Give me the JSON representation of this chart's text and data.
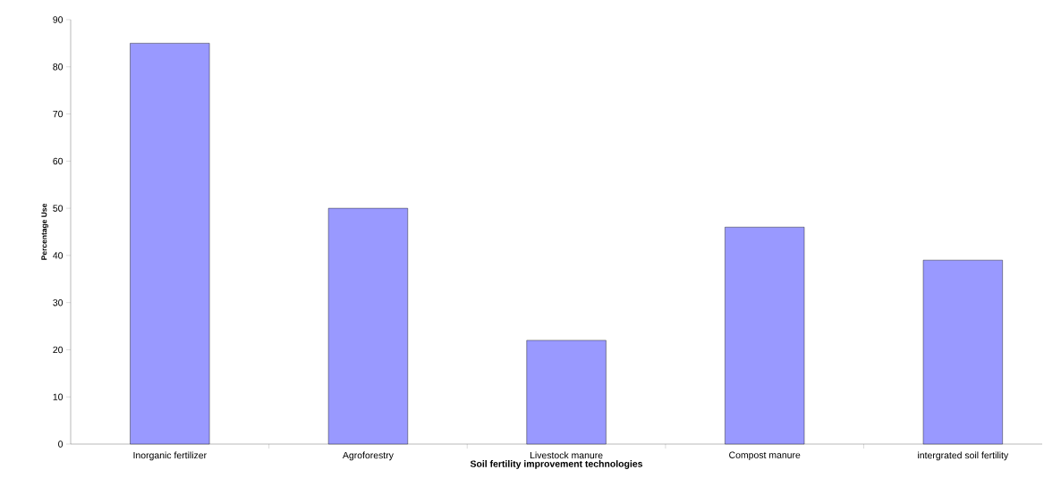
{
  "chart_data": {
    "type": "bar",
    "xlabel": "Soil fertility improvement technologies",
    "ylabel": "Percentage Use",
    "categories": [
      "Inorganic fertilizer",
      "Agroforestry",
      "Livestock manure",
      "Compost manure",
      "intergrated soil fertility"
    ],
    "values": [
      85,
      50,
      22,
      46,
      39
    ],
    "color": "#9999ff",
    "ylim": [
      0,
      90
    ],
    "yticks": [
      0,
      10,
      20,
      30,
      40,
      50,
      60,
      70,
      80,
      90
    ]
  }
}
